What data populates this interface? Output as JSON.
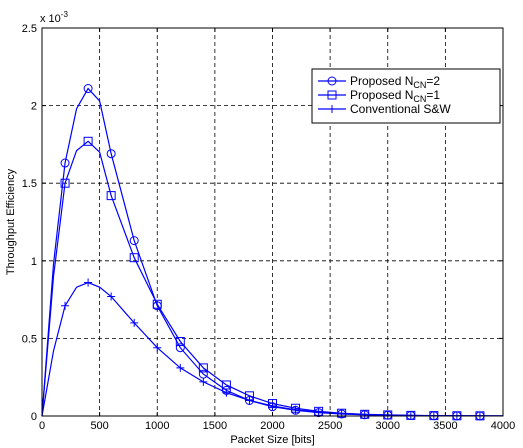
{
  "chart_data": {
    "type": "line",
    "xlabel": "Packet Size [bits]",
    "ylabel": "Throughput Efficiency",
    "xlim": [
      0,
      4000
    ],
    "ylim": [
      0,
      0.0025
    ],
    "x_ticks": [
      0,
      500,
      1000,
      1500,
      2000,
      2500,
      3000,
      3500,
      4000
    ],
    "y_ticks": [
      0,
      0.0005,
      0.001,
      0.0015,
      0.002,
      0.0025
    ],
    "y_tick_labels": [
      "0",
      "0.5",
      "1",
      "1.5",
      "2",
      "2.5"
    ],
    "y_scale_label": "x 10",
    "y_scale_exponent": "-3",
    "grid": true,
    "legend_position": "top-right",
    "series": [
      {
        "name": "Proposed N_CN=2",
        "legend_main": "Proposed N",
        "legend_sub": "CN",
        "legend_suffix": "=2",
        "marker": "circle",
        "color": "#0000ff",
        "x": [
          0,
          100,
          200,
          300,
          400,
          500,
          600,
          800,
          1000,
          1200,
          1400,
          1600,
          1800,
          2000,
          2200,
          2400,
          2600,
          2800,
          3000,
          3200,
          3400,
          3600,
          3800,
          4000
        ],
        "y": [
          0,
          0.00098,
          0.00163,
          0.00198,
          0.00211,
          0.00203,
          0.00169,
          0.00113,
          0.00071,
          0.00044,
          0.00027,
          0.000165,
          0.0001,
          6e-05,
          3.7e-05,
          2.2e-05,
          1.3e-05,
          8e-06,
          5e-06,
          3e-06,
          2e-06,
          1e-06,
          7e-07,
          4e-07
        ],
        "marker_x": [
          200,
          400,
          600,
          800,
          1000,
          1200,
          1400,
          1600,
          1800,
          2000,
          2200,
          2400,
          2600,
          2800,
          3000,
          3200,
          3400,
          3600,
          3800
        ],
        "marker_y": [
          0.00163,
          0.00211,
          0.00169,
          0.00113,
          0.00071,
          0.00044,
          0.00027,
          0.000165,
          0.0001,
          6e-05,
          3.7e-05,
          2.2e-05,
          1.3e-05,
          8e-06,
          5e-06,
          3e-06,
          2e-06,
          1e-06,
          7e-07
        ]
      },
      {
        "name": "Proposed N_CN=1",
        "legend_main": "Proposed N",
        "legend_sub": "CN",
        "legend_suffix": "=1",
        "marker": "square",
        "color": "#0000ff",
        "x": [
          0,
          100,
          200,
          300,
          400,
          500,
          600,
          800,
          1000,
          1200,
          1400,
          1600,
          1800,
          2000,
          2200,
          2400,
          2600,
          2800,
          3000,
          3200,
          3400,
          3600,
          3800,
          4000
        ],
        "y": [
          0,
          0.0009,
          0.0015,
          0.00171,
          0.00177,
          0.0017,
          0.00142,
          0.00102,
          0.00072,
          0.00048,
          0.00031,
          0.0002,
          0.00013,
          8e-05,
          5e-05,
          3e-05,
          1.8e-05,
          1.1e-05,
          7e-06,
          4e-06,
          2.5e-06,
          1.5e-06,
          1e-06,
          6e-07
        ],
        "marker_x": [
          200,
          400,
          600,
          800,
          1000,
          1200,
          1400,
          1600,
          1800,
          2000,
          2200,
          2400,
          2600,
          2800,
          3000,
          3200,
          3400,
          3600,
          3800
        ],
        "marker_y": [
          0.0015,
          0.00177,
          0.00142,
          0.00102,
          0.00072,
          0.00048,
          0.00031,
          0.0002,
          0.00013,
          8e-05,
          5e-05,
          3e-05,
          1.8e-05,
          1.1e-05,
          7e-06,
          4e-06,
          2.5e-06,
          1.5e-06,
          1e-06
        ]
      },
      {
        "name": "Conventional S&W",
        "legend_main": "Conventional S&W",
        "legend_sub": "",
        "legend_suffix": "",
        "marker": "plus",
        "color": "#0000ff",
        "x": [
          0,
          100,
          200,
          300,
          400,
          500,
          600,
          800,
          1000,
          1200,
          1400,
          1600,
          1800,
          2000,
          2200,
          2400,
          2600,
          2800,
          3000,
          3200,
          3400,
          3600,
          3800,
          4000
        ],
        "y": [
          0,
          0.00042,
          0.00071,
          0.00083,
          0.00086,
          0.00083,
          0.00077,
          0.0006,
          0.00044,
          0.00031,
          0.00022,
          0.00015,
          0.0001,
          6.5e-05,
          4e-05,
          2.6e-05,
          1.6e-05,
          1e-05,
          6e-06,
          3.5e-06,
          2e-06,
          1.2e-06,
          7e-07,
          4e-07
        ],
        "marker_x": [
          200,
          400,
          600,
          800,
          1000,
          1200,
          1400,
          1600,
          1800,
          2000,
          2200,
          2400,
          2600,
          2800,
          3000,
          3200,
          3400,
          3600,
          3800
        ],
        "marker_y": [
          0.00071,
          0.00086,
          0.00077,
          0.0006,
          0.00044,
          0.00031,
          0.00022,
          0.00015,
          0.0001,
          6.5e-05,
          4e-05,
          2.6e-05,
          1.6e-05,
          1e-05,
          6e-06,
          3.5e-06,
          2e-06,
          1.2e-06,
          7e-07
        ]
      }
    ]
  }
}
